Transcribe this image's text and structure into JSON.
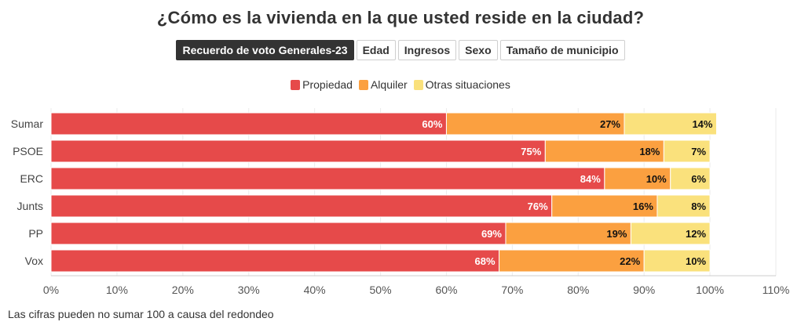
{
  "title": "¿Cómo es la vivienda en la que usted reside en la ciudad?",
  "filters": [
    {
      "label": "Recuerdo de voto Generales-23",
      "active": true
    },
    {
      "label": "Edad",
      "active": false
    },
    {
      "label": "Ingresos",
      "active": false
    },
    {
      "label": "Sexo",
      "active": false
    },
    {
      "label": "Tamaño de municipio",
      "active": false
    }
  ],
  "footnote": "Las cifras pueden no sumar 100 a causa del redondeo",
  "colors": {
    "Propiedad": "#e64a4a",
    "Alquiler": "#fba040",
    "Otras situaciones": "#fae17c"
  },
  "chart_data": {
    "type": "bar",
    "orientation": "horizontal",
    "stacked": true,
    "title": "¿Cómo es la vivienda en la que usted reside en la ciudad?",
    "categories": [
      "Sumar",
      "PSOE",
      "ERC",
      "Junts",
      "PP",
      "Vox"
    ],
    "series": [
      {
        "name": "Propiedad",
        "values": [
          60,
          75,
          84,
          76,
          69,
          68
        ]
      },
      {
        "name": "Alquiler",
        "values": [
          27,
          18,
          10,
          16,
          19,
          22
        ]
      },
      {
        "name": "Otras situaciones",
        "values": [
          14,
          7,
          6,
          8,
          12,
          10
        ]
      }
    ],
    "xlim": [
      0,
      110
    ],
    "xticks": [
      0,
      10,
      20,
      30,
      40,
      50,
      60,
      70,
      80,
      90,
      100,
      110
    ],
    "tick_suffix": "%",
    "grid": true,
    "legend_position": "top-center",
    "xlabel": "",
    "ylabel": ""
  }
}
